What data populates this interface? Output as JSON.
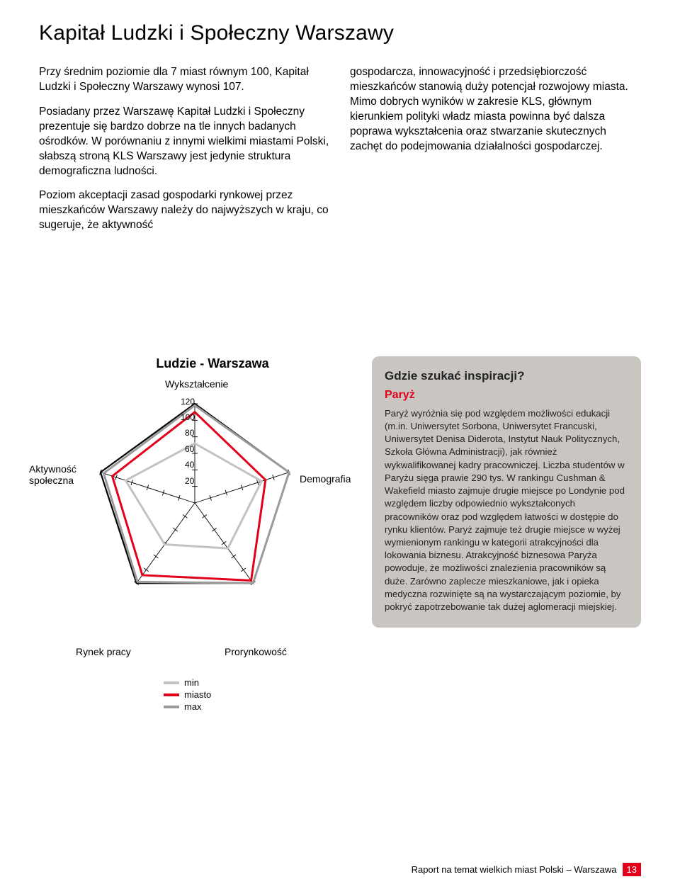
{
  "title": "Kapitał Ludzki i Społeczny Warszawy",
  "col1": {
    "p1": "Przy średnim poziomie dla 7 miast równym 100, Kapitał Ludzki i Społeczny Warszawy wynosi 107.",
    "p2": "Posiadany przez Warszawę Kapitał Ludzki i Społeczny prezentuje się bardzo dobrze na tle innych badanych ośrodków. W porównaniu z innymi wielkimi miastami Polski, słabszą stroną KLS Warszawy jest jedynie struktura demograficzna ludności.",
    "p3": "Poziom akceptacji zasad gospodarki rynkowej przez mieszkańców Warszawy należy do najwyższych w kraju, co sugeruje, że aktywność"
  },
  "col2": {
    "p1": "gospodarcza, innowacyjność i przedsiębiorczość mieszkańców stanowią duży potencjał rozwojowy miasta. Mimo dobrych wyników w zakresie KLS, głównym kierunkiem polityki władz miasta powinna być dalsza poprawa wykształcenia oraz stwarzanie skutecznych zachęt do podejmowania działalności gospodarczej."
  },
  "chart": {
    "title": "Ludzie - Warszawa",
    "type": "radar",
    "axes": [
      "Wykształcenie",
      "Demografia",
      "Prorynkowość",
      "Rynek pracy",
      "Aktywność społeczna"
    ],
    "label_demografia": "Demografia",
    "label_aktywnosc": "Aktywność społeczna",
    "label_rynek": "Rynek pracy",
    "label_prorynkowosc": "Prorynkowość",
    "label_wyksztalcenie": "Wykształcenie",
    "tick_values": [
      20,
      40,
      60,
      80,
      100,
      120
    ],
    "t20": "20",
    "t40": "40",
    "t60": "60",
    "t80": "80",
    "t100": "100",
    "t120": "120",
    "series": {
      "min": {
        "values": [
          72,
          85,
          68,
          62,
          88
        ],
        "color": "#c2c2c2"
      },
      "miasto": {
        "values": [
          110,
          90,
          116,
          108,
          105
        ],
        "color": "#e2001a"
      },
      "max": {
        "values": [
          118,
          120,
          120,
          118,
          116
        ],
        "color": "#9a9a9a"
      }
    },
    "stroke_width": 3,
    "background": "#ffffff",
    "grid_color": "#000000",
    "tick_step": 20,
    "max_radius_value": 120,
    "legend": {
      "min": "min",
      "miasto": "miasto",
      "max": "max"
    }
  },
  "sidebar": {
    "title": "Gdzie szukać inspiracji?",
    "subtitle": "Paryż",
    "subtitle_color": "#e2001a",
    "body": "Paryż wyróżnia się pod względem możliwości edukacji (m.in. Uniwersytet Sorbona, Uniwersytet Francuski, Uniwersytet Denisa Diderota, Instytut Nauk Politycznych, Szkoła Główna Administracji), jak również wykwalifikowanej kadry pracowniczej. Liczba studentów w Paryżu sięga prawie 290 tys. W rankingu Cushman & Wakefield miasto zajmuje drugie miejsce po Londynie pod względem liczby odpowiednio wykształconych pracowników oraz pod względem łatwości w dostępie do rynku klientów. Paryż zajmuje też drugie miejsce w wyżej wymienionym rankingu w kategorii atrakcyjności dla lokowania biznesu. Atrakcyjność biznesowa Paryża powoduje, że możliwości znalezienia pracowników są duże. Zarówno zaplecze mieszkaniowe, jak i opieka medyczna rozwinięte są na wystarczającym poziomie, by pokryć zapotrzebowanie tak dużej aglomeracji miejskiej."
  },
  "footer": {
    "text": "Raport na temat wielkich miast Polski – Warszawa",
    "page": "13",
    "badge_color": "#e2001a"
  }
}
